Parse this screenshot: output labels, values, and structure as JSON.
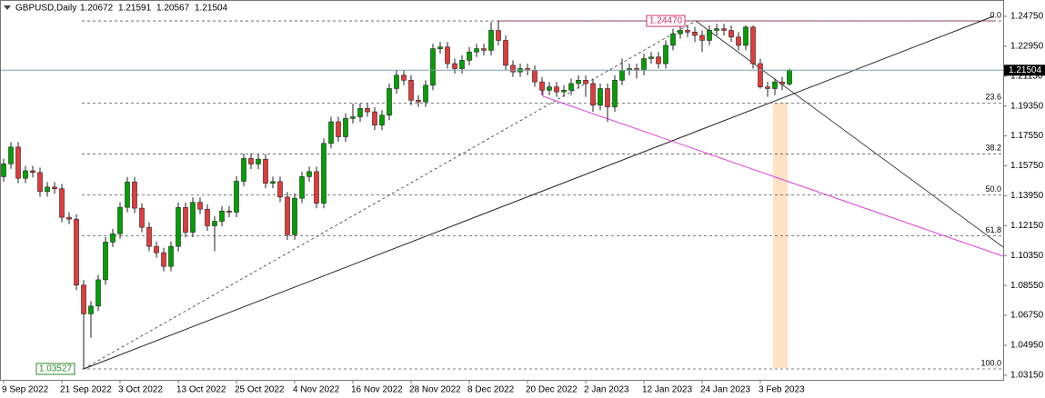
{
  "chart_data": {
    "type": "candlestick",
    "symbol": "GBPUSD,Daily",
    "categories": [
      "9 Sep 2022",
      null,
      null,
      null,
      null,
      null,
      null,
      null,
      "21 Sep 2022",
      null,
      null,
      null,
      null,
      null,
      null,
      null,
      "3 Oct 2022",
      null,
      null,
      null,
      null,
      null,
      null,
      null,
      "13 Oct 2022",
      null,
      null,
      null,
      null,
      null,
      null,
      null,
      "25 Oct 2022",
      null,
      null,
      null,
      null,
      null,
      null,
      null,
      "4 Nov 2022",
      null,
      null,
      null,
      null,
      null,
      null,
      null,
      "16 Nov 2022",
      null,
      null,
      null,
      null,
      null,
      null,
      null,
      "28 Nov 2022",
      null,
      null,
      null,
      null,
      null,
      null,
      null,
      "8 Dec 2022",
      null,
      null,
      null,
      null,
      null,
      null,
      null,
      "20 Dec 2022",
      null,
      null,
      null,
      null,
      null,
      null,
      null,
      "2 Jan 2023",
      null,
      null,
      null,
      null,
      null,
      null,
      null,
      "12 Jan 2023",
      null,
      null,
      null,
      null,
      null,
      null,
      null,
      "24 Jan 2023",
      null,
      null,
      null,
      null,
      null,
      null,
      null,
      "3 Feb 2023",
      null,
      null,
      null,
      null
    ],
    "candles": [
      [
        1.151,
        1.1617,
        1.148,
        1.1587
      ],
      [
        1.1587,
        1.1718,
        1.1557,
        1.1688
      ],
      [
        1.1688,
        1.1718,
        1.147,
        1.15
      ],
      [
        1.15,
        1.1575,
        1.147,
        1.1545
      ],
      [
        1.1545,
        1.1575,
        1.1505,
        1.1535
      ],
      [
        1.1535,
        1.1565,
        1.139,
        1.142
      ],
      [
        1.142,
        1.1477,
        1.139,
        1.1447
      ],
      [
        1.1447,
        1.1477,
        1.1407,
        1.1437
      ],
      [
        1.1437,
        1.1467,
        1.1235,
        1.1265
      ],
      [
        1.1265,
        1.1295,
        1.1224,
        1.1254
      ],
      [
        1.1254,
        1.1284,
        1.0827,
        1.0857
      ],
      [
        1.0857,
        1.0887,
        1.03527,
        1.0684
      ],
      [
        1.0684,
        1.0761,
        1.054,
        1.0731
      ],
      [
        1.0731,
        1.0919,
        1.0701,
        1.0889
      ],
      [
        1.0889,
        1.1146,
        1.0859,
        1.1116
      ],
      [
        1.1116,
        1.1196,
        1.1086,
        1.1166
      ],
      [
        1.1166,
        1.1355,
        1.1136,
        1.1325
      ],
      [
        1.1325,
        1.1508,
        1.1295,
        1.1478
      ],
      [
        1.1478,
        1.1508,
        1.129,
        1.132
      ],
      [
        1.132,
        1.135,
        1.1175,
        1.1205
      ],
      [
        1.1205,
        1.1235,
        1.106,
        1.109
      ],
      [
        1.109,
        1.112,
        1.1022,
        1.1052
      ],
      [
        1.1052,
        1.1082,
        1.094,
        1.097
      ],
      [
        1.097,
        1.112,
        1.094,
        1.109
      ],
      [
        1.109,
        1.1354,
        1.106,
        1.1324
      ],
      [
        1.1324,
        1.1354,
        1.1145,
        1.1175
      ],
      [
        1.1175,
        1.1385,
        1.1145,
        1.1355
      ],
      [
        1.1355,
        1.1385,
        1.1284,
        1.1314
      ],
      [
        1.1314,
        1.1344,
        1.1184,
        1.1214
      ],
      [
        1.1214,
        1.1271,
        1.106,
        1.1241
      ],
      [
        1.1241,
        1.1333,
        1.1211,
        1.1303
      ],
      [
        1.1303,
        1.1333,
        1.1266,
        1.1296
      ],
      [
        1.1296,
        1.1512,
        1.1266,
        1.1482
      ],
      [
        1.1482,
        1.1649,
        1.1452,
        1.1619
      ],
      [
        1.1619,
        1.1649,
        1.1556,
        1.1586
      ],
      [
        1.1586,
        1.1645,
        1.1556,
        1.1615
      ],
      [
        1.1615,
        1.1645,
        1.144,
        1.147
      ],
      [
        1.147,
        1.151,
        1.144,
        1.148
      ],
      [
        1.148,
        1.151,
        1.1357,
        1.1387
      ],
      [
        1.1387,
        1.1417,
        1.113,
        1.116
      ],
      [
        1.116,
        1.141,
        1.113,
        1.138
      ],
      [
        1.138,
        1.154,
        1.135,
        1.151
      ],
      [
        1.151,
        1.157,
        1.148,
        1.154
      ],
      [
        1.154,
        1.157,
        1.132,
        1.135
      ],
      [
        1.135,
        1.174,
        1.132,
        1.171
      ],
      [
        1.171,
        1.187,
        1.168,
        1.184
      ],
      [
        1.184,
        1.187,
        1.172,
        1.175
      ],
      [
        1.175,
        1.189,
        1.172,
        1.186
      ],
      [
        1.186,
        1.195,
        1.183,
        1.187
      ],
      [
        1.187,
        1.195,
        1.184,
        1.192
      ],
      [
        1.192,
        1.195,
        1.187,
        1.19
      ],
      [
        1.19,
        1.193,
        1.179,
        1.182
      ],
      [
        1.182,
        1.191,
        1.179,
        1.188
      ],
      [
        1.188,
        1.207,
        1.185,
        1.204
      ],
      [
        1.204,
        1.215,
        1.201,
        1.212
      ],
      [
        1.212,
        1.215,
        1.206,
        1.209
      ],
      [
        1.209,
        1.212,
        1.194,
        1.197
      ],
      [
        1.197,
        1.2,
        1.193,
        1.196
      ],
      [
        1.196,
        1.209,
        1.193,
        1.206
      ],
      [
        1.206,
        1.231,
        1.203,
        1.228
      ],
      [
        1.228,
        1.232,
        1.225,
        1.229
      ],
      [
        1.229,
        1.232,
        1.216,
        1.219
      ],
      [
        1.219,
        1.222,
        1.213,
        1.216
      ],
      [
        1.216,
        1.224,
        1.213,
        1.221
      ],
      [
        1.221,
        1.229,
        1.218,
        1.226
      ],
      [
        1.226,
        1.231,
        1.223,
        1.228
      ],
      [
        1.228,
        1.231,
        1.224,
        1.227
      ],
      [
        1.227,
        1.244,
        1.224,
        1.239
      ],
      [
        1.239,
        1.2447,
        1.23,
        1.233
      ],
      [
        1.233,
        1.236,
        1.215,
        1.218
      ],
      [
        1.218,
        1.221,
        1.211,
        1.214
      ],
      [
        1.214,
        1.219,
        1.211,
        1.216
      ],
      [
        1.216,
        1.219,
        1.212,
        1.215
      ],
      [
        1.215,
        1.218,
        1.205,
        1.208
      ],
      [
        1.208,
        1.211,
        1.2,
        1.203
      ],
      [
        1.203,
        1.208,
        1.2,
        1.205
      ],
      [
        1.205,
        1.208,
        1.199,
        1.202
      ],
      [
        1.202,
        1.206,
        1.199,
        1.203
      ],
      [
        1.203,
        1.21,
        1.2,
        1.207
      ],
      [
        1.207,
        1.212,
        1.204,
        1.209
      ],
      [
        1.209,
        1.212,
        1.199,
        1.207
      ],
      [
        1.207,
        1.21,
        1.19,
        1.194
      ],
      [
        1.194,
        1.207,
        1.191,
        1.204
      ],
      [
        1.204,
        1.207,
        1.184,
        1.193
      ],
      [
        1.193,
        1.212,
        1.19,
        1.209
      ],
      [
        1.209,
        1.222,
        1.206,
        1.215
      ],
      [
        1.215,
        1.219,
        1.212,
        1.216
      ],
      [
        1.216,
        1.219,
        1.21,
        1.215
      ],
      [
        1.215,
        1.225,
        1.212,
        1.222
      ],
      [
        1.222,
        1.226,
        1.219,
        1.223
      ],
      [
        1.223,
        1.226,
        1.216,
        1.219
      ],
      [
        1.219,
        1.233,
        1.216,
        1.23
      ],
      [
        1.23,
        1.24,
        1.227,
        1.237
      ],
      [
        1.237,
        1.242,
        1.234,
        1.239
      ],
      [
        1.239,
        1.242,
        1.235,
        1.238
      ],
      [
        1.238,
        1.241,
        1.232,
        1.236
      ],
      [
        1.236,
        1.239,
        1.226,
        1.233
      ],
      [
        1.233,
        1.242,
        1.23,
        1.239
      ],
      [
        1.239,
        1.243,
        1.236,
        1.24
      ],
      [
        1.24,
        1.243,
        1.236,
        1.239
      ],
      [
        1.239,
        1.242,
        1.232,
        1.235
      ],
      [
        1.235,
        1.238,
        1.227,
        1.23
      ],
      [
        1.23,
        1.242,
        1.227,
        1.241
      ],
      [
        1.241,
        1.242,
        1.216,
        1.219
      ],
      [
        1.219,
        1.222,
        1.204,
        1.205
      ],
      [
        1.205,
        1.208,
        1.199,
        1.204
      ],
      [
        1.204,
        1.21,
        1.2,
        1.208
      ],
      [
        1.208,
        1.211,
        1.203,
        1.2067
      ],
      [
        1.20672,
        1.21591,
        1.20567,
        1.21504
      ]
    ],
    "ylim": [
      1.0287,
      1.2573
    ],
    "yticks": [
      {
        "value": 1.2475,
        "label": "1.24750"
      },
      {
        "value": 1.2295,
        "label": "1.22950"
      },
      {
        "value": 1.2115,
        "label": "1.21150"
      },
      {
        "value": 1.1935,
        "label": "1.19350"
      },
      {
        "value": 1.1755,
        "label": "1.17550"
      },
      {
        "value": 1.1575,
        "label": "1.15750"
      },
      {
        "value": 1.1395,
        "label": "1.13950"
      },
      {
        "value": 1.1215,
        "label": "1.12150"
      },
      {
        "value": 1.1035,
        "label": "1.10350"
      },
      {
        "value": 1.0855,
        "label": "1.08550"
      },
      {
        "value": 1.0675,
        "label": "1.06750"
      },
      {
        "value": 1.0495,
        "label": "1.04950"
      },
      {
        "value": 1.0315,
        "label": "1.03150"
      }
    ],
    "bull_color": "#00a000",
    "bear_color": "#e23b3b",
    "price_line_color": "#7f9fae",
    "fib_levels": [
      {
        "value": 1.2447,
        "label": "0.0"
      },
      {
        "value": 1.1953,
        "label": "23.6"
      },
      {
        "value": 1.1647,
        "label": "38.2"
      },
      {
        "value": 1.14,
        "label": "50.0"
      },
      {
        "value": 1.1153,
        "label": "61.8"
      },
      {
        "value": 1.03527,
        "label": "100.0"
      }
    ],
    "annotations": [
      {
        "value": 1.2447,
        "label": "1.24470",
        "color": "#d0306a"
      },
      {
        "value": 1.03527,
        "label": "1.03527",
        "color": "#2a8a2a"
      }
    ]
  }
}
